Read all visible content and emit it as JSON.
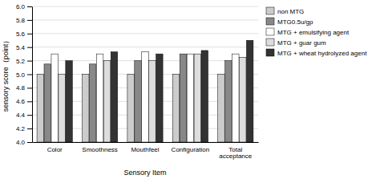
{
  "chart_data": {
    "type": "bar",
    "categories": [
      "Color",
      "Smoothness",
      "Mouthfeel",
      "Configuration",
      "Total\nacceptance"
    ],
    "series": [
      {
        "name": "non MTG",
        "color": "#cccccc",
        "values": [
          5.0,
          5.0,
          5.0,
          5.0,
          5.0
        ]
      },
      {
        "name": "MTG0.5u/gp",
        "color": "#888888",
        "values": [
          5.15,
          5.15,
          5.2,
          5.3,
          5.2
        ]
      },
      {
        "name": "MTG + emulsifying agent",
        "color": "#ffffff",
        "values": [
          5.3,
          5.3,
          5.33,
          5.3,
          5.3
        ]
      },
      {
        "name": "MTG + guar gum",
        "color": "#dddddd",
        "values": [
          5.0,
          5.2,
          5.2,
          5.3,
          5.25
        ]
      },
      {
        "name": "MTG + wheat hydrolyzed agent",
        "color": "#333333",
        "values": [
          5.2,
          5.33,
          5.3,
          5.35,
          5.5
        ]
      }
    ],
    "ylim": [
      4.0,
      6.0
    ],
    "yticks": [
      {
        "value": 4.0,
        "label": "4.0"
      },
      4.2,
      4.4,
      4.6,
      4.8,
      {
        "value": 5.0,
        "label": "5.0"
      },
      5.2,
      5.4,
      5.6,
      5.8,
      {
        "value": 6.0,
        "label": "6.0"
      }
    ],
    "ylabel": "sensory score（point）",
    "xlabel": "Sensory Item",
    "grid": true,
    "legend": "upper right"
  }
}
